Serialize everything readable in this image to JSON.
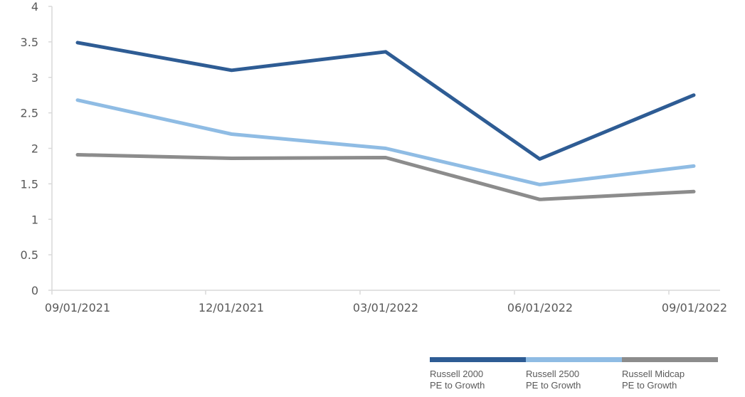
{
  "chart_data": {
    "type": "line",
    "title": "",
    "xlabel": "",
    "ylabel": "",
    "ylim": [
      0,
      4
    ],
    "yticks": [
      "0",
      "0.5",
      "1",
      "1.5",
      "2",
      "2.5",
      "3",
      "3.5",
      "4"
    ],
    "categories": [
      "09/01/2021",
      "12/01/2021",
      "03/01/2022",
      "06/01/2022",
      "09/01/2022"
    ],
    "grid": false,
    "legend_position": "bottom-right",
    "series": [
      {
        "name": "Russell 2000\nPE to Growth",
        "color": "#2e5c94",
        "values": [
          3.49,
          3.1,
          3.36,
          1.85,
          2.75
        ]
      },
      {
        "name": "Russell 2500\nPE to Growth",
        "color": "#8fbce4",
        "values": [
          2.68,
          2.2,
          2.0,
          1.49,
          1.75
        ]
      },
      {
        "name": "Russell Midcap\nPE to Growth",
        "color": "#8c8c8c",
        "values": [
          1.91,
          1.86,
          1.87,
          1.28,
          1.39
        ]
      }
    ]
  }
}
